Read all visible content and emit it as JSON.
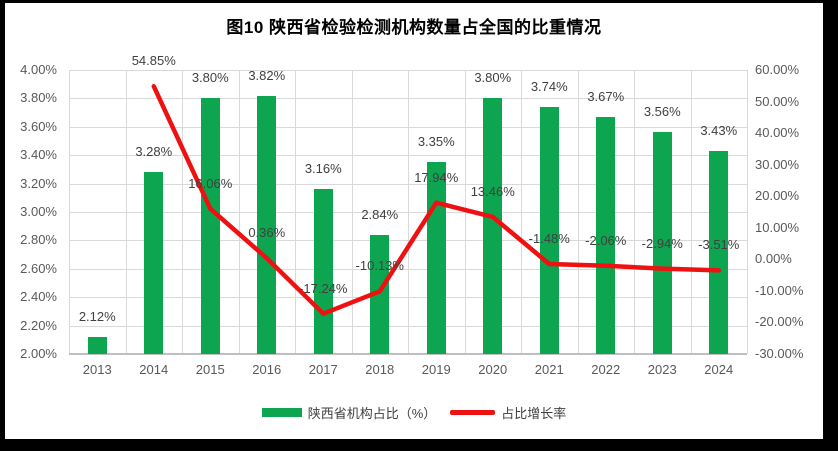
{
  "title": "图10  陕西省检验检测机构数量占全国的比重情况",
  "colors": {
    "bar": "#0ea550",
    "line": "#ee1111",
    "grid": "#d9d9d9",
    "axis_line": "#bfbfbf",
    "tick_text": "#595959",
    "data_label": "#404040",
    "frame": "#000000",
    "panel": "#ffffff"
  },
  "chart_data": {
    "type": "bar",
    "combo": "bar+line",
    "title": "图10  陕西省检验检测机构数量占全国的比重情况",
    "categories": [
      "2013",
      "2014",
      "2015",
      "2016",
      "2017",
      "2018",
      "2019",
      "2020",
      "2021",
      "2022",
      "2023",
      "2024"
    ],
    "series": [
      {
        "name": "陕西省机构占比（%）",
        "type": "bar",
        "axis": "left",
        "color": "#0ea550",
        "values": [
          2.12,
          3.28,
          3.8,
          3.82,
          3.16,
          2.84,
          3.35,
          3.8,
          3.74,
          3.67,
          3.56,
          3.43
        ],
        "labels": [
          "2.12%",
          "3.28%",
          "3.80%",
          "3.82%",
          "3.16%",
          "2.84%",
          "3.35%",
          "3.80%",
          "3.74%",
          "3.67%",
          "3.56%",
          "3.43%"
        ]
      },
      {
        "name": "占比增长率",
        "type": "line",
        "axis": "right",
        "color": "#ee1111",
        "values": [
          null,
          54.85,
          16.06,
          0.36,
          -17.24,
          -10.13,
          17.94,
          13.46,
          -1.48,
          -2.06,
          -2.94,
          -3.51
        ],
        "labels": [
          "",
          "54.85%",
          "16.06%",
          "0.36%",
          "-17.24%",
          "-10.13%",
          "17.94%",
          "13.46%",
          "-1.48%",
          "-2.06%",
          "-2.94%",
          "-3.51%"
        ]
      }
    ],
    "left_axis": {
      "min": 2.0,
      "max": 4.0,
      "step": 0.2,
      "ticks": [
        {
          "label": "4.00%",
          "value": 4.0
        },
        {
          "label": "3.80%",
          "value": 3.8
        },
        {
          "label": "3.60%",
          "value": 3.6
        },
        {
          "label": "3.40%",
          "value": 3.4
        },
        {
          "label": "3.20%",
          "value": 3.2
        },
        {
          "label": "3.00%",
          "value": 3.0
        },
        {
          "label": "2.80%",
          "value": 2.8
        },
        {
          "label": "2.60%",
          "value": 2.6
        },
        {
          "label": "2.40%",
          "value": 2.4
        },
        {
          "label": "2.20%",
          "value": 2.2
        },
        {
          "label": "2.00%",
          "value": 2.0
        }
      ]
    },
    "right_axis": {
      "min": -30,
      "max": 60,
      "step": 10,
      "ticks": [
        {
          "label": "60.00%",
          "value": 60
        },
        {
          "label": "50.00%",
          "value": 50
        },
        {
          "label": "40.00%",
          "value": 40
        },
        {
          "label": "30.00%",
          "value": 30
        },
        {
          "label": "20.00%",
          "value": 20
        },
        {
          "label": "10.00%",
          "value": 10
        },
        {
          "label": "0.00%",
          "value": 0
        },
        {
          "label": "-10.00%",
          "value": -10
        },
        {
          "label": "-20.00%",
          "value": -20
        },
        {
          "label": "-30.00%",
          "value": -30
        }
      ]
    },
    "grid": "horizontal+vertical",
    "legend_position": "bottom"
  }
}
